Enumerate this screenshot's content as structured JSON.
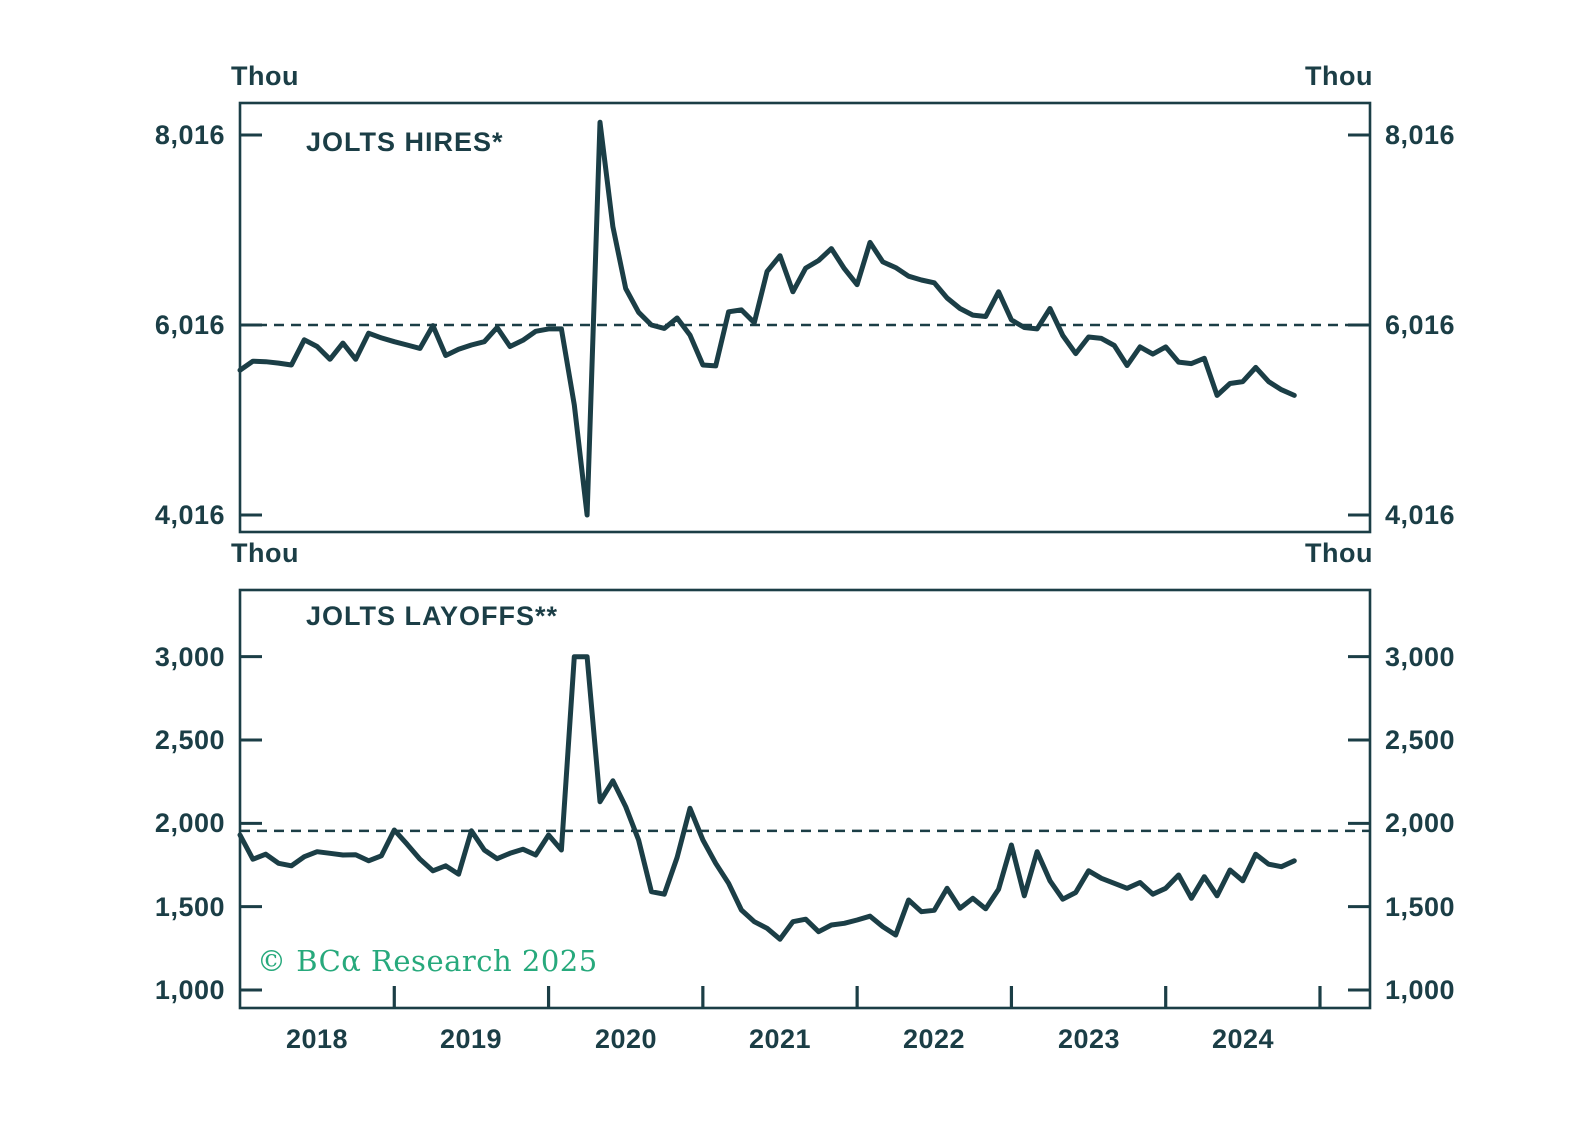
{
  "colors": {
    "ink": "#1b3e46",
    "watermark_green": "#27a97c",
    "background": "#ffffff"
  },
  "watermark": "© BCα Research 2025",
  "x_axis": {
    "year_labels": [
      "2018",
      "2019",
      "2020",
      "2021",
      "2022",
      "2023",
      "2024"
    ]
  },
  "chart_data": [
    {
      "type": "line",
      "title": "JOLTS HIRES*",
      "unit_label_left": "Thou",
      "unit_label_right": "Thou",
      "y_tick_labels": [
        "8,016",
        "6,016",
        "4,016"
      ],
      "y_tick_values": [
        8016,
        6016,
        4016
      ],
      "dashed_line_value": 6016,
      "ylim": [
        3680,
        8350
      ],
      "x_range": "Jan 2018 - Nov 2024, monthly",
      "grid": "off",
      "values": [
        5540,
        5635,
        5630,
        5615,
        5595,
        5860,
        5790,
        5655,
        5825,
        5655,
        5930,
        5880,
        5840,
        5805,
        5770,
        6010,
        5695,
        5760,
        5805,
        5840,
        5990,
        5790,
        5855,
        5950,
        5975,
        5975,
        5175,
        4016,
        8150,
        7050,
        6400,
        6150,
        6016,
        5980,
        6090,
        5910,
        5595,
        5585,
        6155,
        6175,
        6040,
        6580,
        6745,
        6365,
        6615,
        6695,
        6820,
        6610,
        6440,
        6885,
        6680,
        6620,
        6530,
        6490,
        6460,
        6300,
        6190,
        6120,
        6105,
        6365,
        6070,
        5990,
        5975,
        6190,
        5905,
        5715,
        5890,
        5875,
        5800,
        5590,
        5785,
        5710,
        5785,
        5625,
        5610,
        5665,
        5275,
        5400,
        5420,
        5570,
        5420,
        5335,
        5275
      ]
    },
    {
      "type": "line",
      "title": "JOLTS LAYOFFS**",
      "unit_label_left": "Thou",
      "unit_label_right": "Thou",
      "y_tick_labels": [
        "3,000",
        "2,500",
        "2,000",
        "1,500",
        "1,000"
      ],
      "y_tick_values": [
        3000,
        2500,
        2000,
        1500,
        1000
      ],
      "dashed_line_value": 1955,
      "ylim": [
        890,
        3400
      ],
      "x_range": "Jan 2018 - Nov 2024, monthly",
      "grid": "off",
      "values": [
        1930,
        1785,
        1815,
        1760,
        1745,
        1800,
        1830,
        1820,
        1810,
        1812,
        1775,
        1805,
        1960,
        1875,
        1785,
        1715,
        1745,
        1695,
        1955,
        1840,
        1788,
        1820,
        1845,
        1810,
        1930,
        1840,
        3000,
        3000,
        2130,
        2255,
        2100,
        1900,
        1590,
        1575,
        1795,
        2090,
        1900,
        1760,
        1640,
        1480,
        1410,
        1370,
        1305,
        1410,
        1425,
        1350,
        1390,
        1400,
        1420,
        1443,
        1380,
        1330,
        1540,
        1470,
        1478,
        1610,
        1490,
        1550,
        1487,
        1605,
        1870,
        1565,
        1830,
        1655,
        1545,
        1585,
        1715,
        1670,
        1640,
        1610,
        1645,
        1575,
        1610,
        1690,
        1550,
        1680,
        1565,
        1720,
        1655,
        1815,
        1755,
        1740,
        1775
      ]
    }
  ]
}
